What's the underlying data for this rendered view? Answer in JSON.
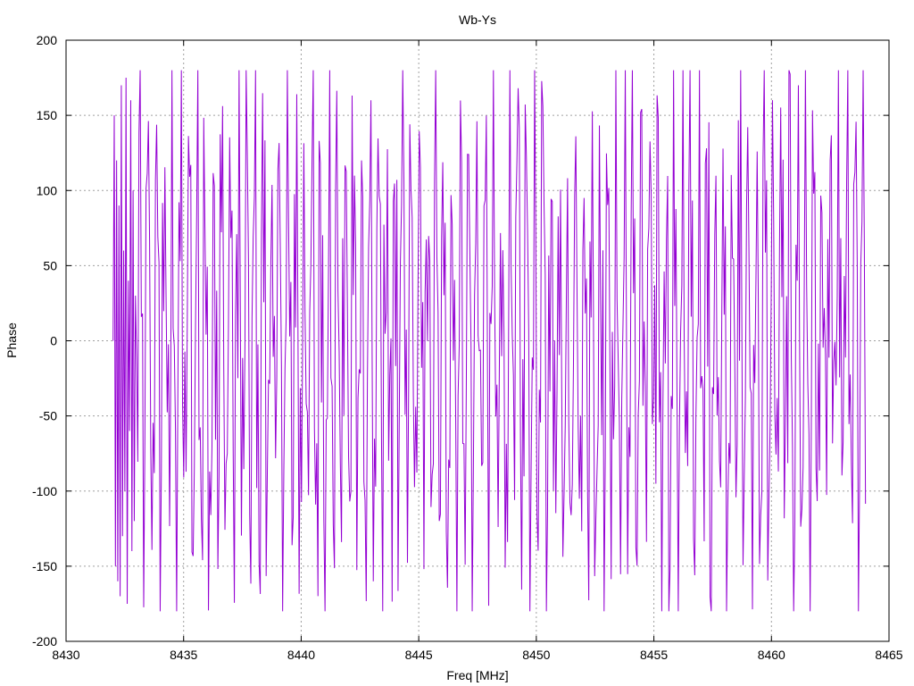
{
  "chart_data": {
    "type": "line",
    "title": "Wb-Ys",
    "xlabel": "Freq [MHz]",
    "ylabel": "Phase",
    "xlim": [
      8430,
      8465
    ],
    "ylim": [
      -200,
      200
    ],
    "x_ticks": [
      8430,
      8435,
      8440,
      8445,
      8450,
      8455,
      8460,
      8465
    ],
    "y_ticks": [
      -200,
      -150,
      -100,
      -50,
      0,
      50,
      100,
      150,
      200
    ],
    "grid": true,
    "legend": "none",
    "series": [
      {
        "color": "#9400d3",
        "x_start": 8432.0,
        "x_end": 8464.0,
        "point_count": 640,
        "value_range": [
          -180,
          180
        ],
        "description_values": [
          0,
          150,
          -150,
          120,
          -160,
          90,
          -170,
          170,
          -130,
          60,
          -100,
          175,
          -175,
          40,
          -60,
          160,
          -140,
          100,
          -120,
          30
        ]
      }
    ]
  }
}
